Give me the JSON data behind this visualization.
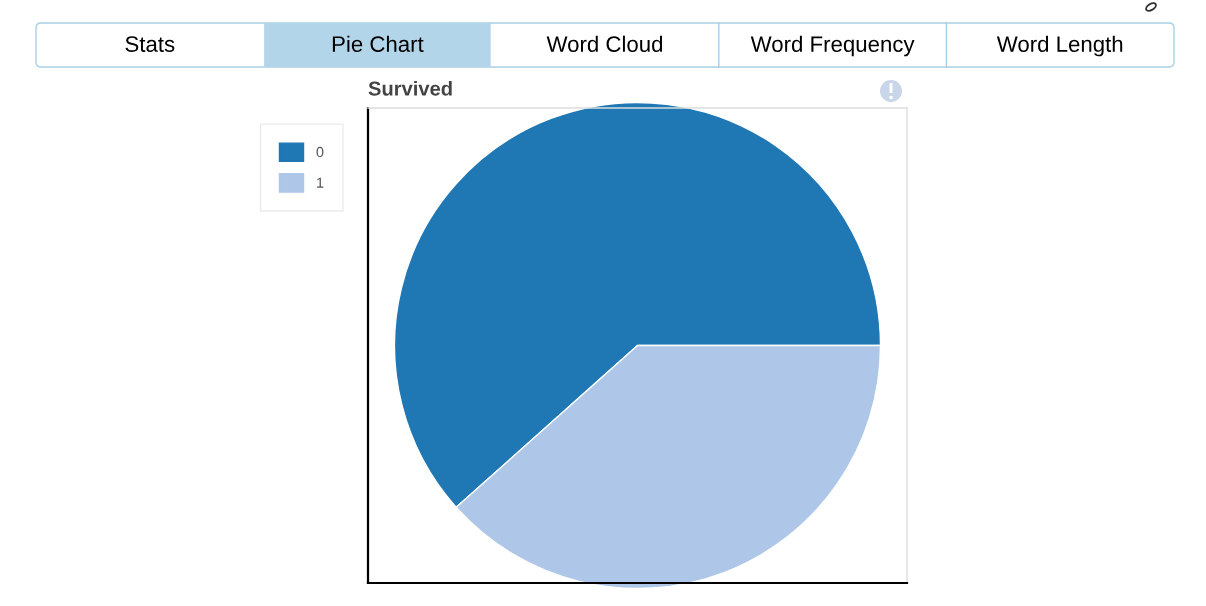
{
  "chart_data": {
    "type": "pie",
    "title": "Survived",
    "categories": [
      "0",
      "1"
    ],
    "values": [
      61.6,
      38.4
    ],
    "colors": [
      "#1f77b4",
      "#aec7e8"
    ],
    "legend": "top left",
    "annotations": [
      "Stats",
      "Pie Chart",
      "Word Cloud",
      "Word Frequency",
      "Word Length"
    ]
  }
}
